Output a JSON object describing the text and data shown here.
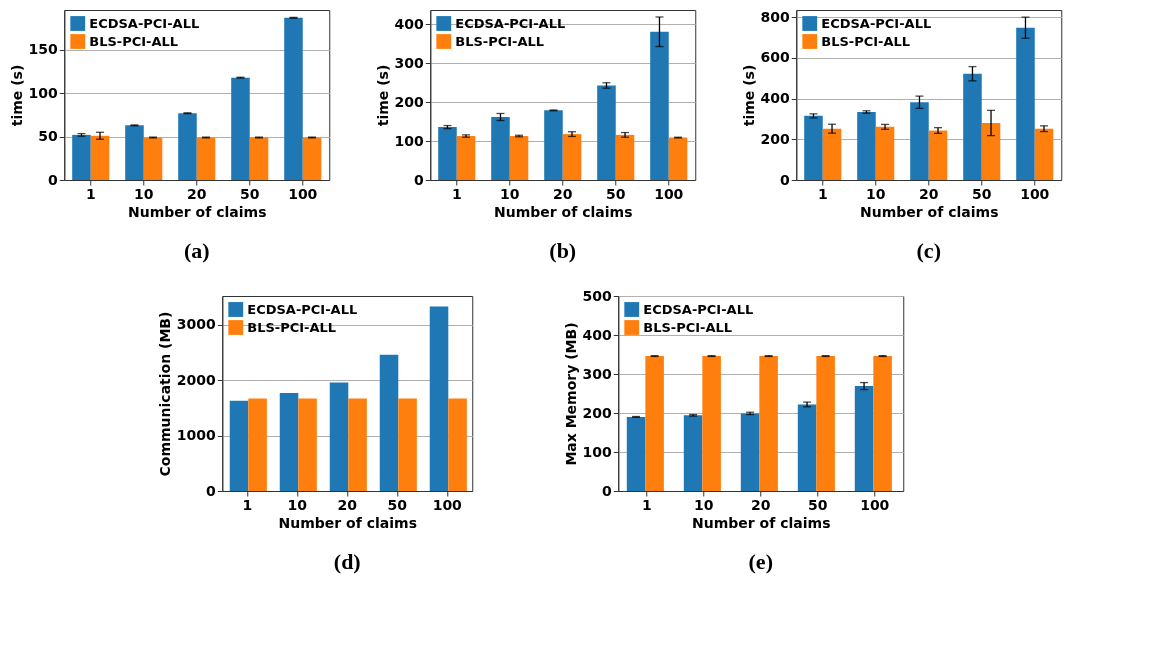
{
  "chart_data": [
    {
      "type": "bar",
      "xlabel": "Number of claims",
      "ylabel": "time (s)",
      "annotations": [
        "(a)"
      ],
      "categories": [
        "1",
        "10",
        "20",
        "50",
        "100"
      ],
      "ylim": [
        0,
        196
      ],
      "yticks": [
        0,
        50,
        100,
        150
      ],
      "grid": "y",
      "legend": "top left",
      "series": [
        {
          "name": "ECDSA-PCI-ALL",
          "color": "#1f77b4",
          "values": [
            52,
            63,
            77,
            118,
            187
          ],
          "errors": [
            1.5,
            0.5,
            0.5,
            0.5,
            0.5
          ]
        },
        {
          "name": "BLS-PCI-ALL",
          "color": "#ff7f0e",
          "values": [
            51,
            49,
            49,
            49,
            49
          ],
          "errors": [
            4,
            0.5,
            0.5,
            0.5,
            0.5
          ]
        }
      ]
    },
    {
      "type": "bar",
      "xlabel": "Number of claims",
      "ylabel": "time (s)",
      "annotations": [
        "(b)"
      ],
      "categories": [
        "1",
        "10",
        "20",
        "50",
        "100"
      ],
      "ylim": [
        0,
        437
      ],
      "yticks": [
        0,
        100,
        200,
        300,
        400
      ],
      "grid": "y",
      "legend": "top left",
      "series": [
        {
          "name": "ECDSA-PCI-ALL",
          "color": "#1f77b4",
          "values": [
            136,
            162,
            179,
            243,
            381
          ],
          "errors": [
            4,
            9,
            1,
            7,
            38
          ]
        },
        {
          "name": "BLS-PCI-ALL",
          "color": "#ff7f0e",
          "values": [
            113,
            113,
            118,
            116,
            109
          ],
          "errors": [
            3,
            2,
            6,
            6,
            1
          ]
        }
      ]
    },
    {
      "type": "bar",
      "xlabel": "Number of claims",
      "ylabel": "time (s)",
      "annotations": [
        "(c)"
      ],
      "categories": [
        "1",
        "10",
        "20",
        "50",
        "100"
      ],
      "ylim": [
        0,
        835
      ],
      "yticks": [
        0,
        200,
        400,
        600,
        800
      ],
      "grid": "y",
      "legend": "top left",
      "series": [
        {
          "name": "ECDSA-PCI-ALL",
          "color": "#1f77b4",
          "values": [
            315,
            334,
            382,
            522,
            748
          ],
          "errors": [
            10,
            6,
            30,
            35,
            52
          ]
        },
        {
          "name": "BLS-PCI-ALL",
          "color": "#ff7f0e",
          "values": [
            252,
            261,
            243,
            280,
            252
          ],
          "errors": [
            22,
            12,
            14,
            62,
            14
          ]
        }
      ]
    },
    {
      "type": "bar",
      "xlabel": "Number of claims",
      "ylabel": "Communication (MB)",
      "annotations": [
        "(d)"
      ],
      "categories": [
        "1",
        "10",
        "20",
        "50",
        "100"
      ],
      "ylim": [
        0,
        3520
      ],
      "yticks": [
        0,
        1000,
        2000,
        3000
      ],
      "grid": "y",
      "legend": "top left",
      "series": [
        {
          "name": "ECDSA-PCI-ALL",
          "color": "#1f77b4",
          "values": [
            1630,
            1770,
            1960,
            2460,
            3330
          ]
        },
        {
          "name": "BLS-PCI-ALL",
          "color": "#ff7f0e",
          "values": [
            1670,
            1670,
            1670,
            1670,
            1670
          ]
        }
      ]
    },
    {
      "type": "bar",
      "xlabel": "Number of claims",
      "ylabel": "Max Memory (MB)",
      "annotations": [
        "(e)"
      ],
      "categories": [
        "1",
        "10",
        "20",
        "50",
        "100"
      ],
      "ylim": [
        0,
        500
      ],
      "yticks": [
        0,
        100,
        200,
        300,
        400,
        500
      ],
      "grid": "y",
      "legend": "top left",
      "series": [
        {
          "name": "ECDSA-PCI-ALL",
          "color": "#1f77b4",
          "values": [
            190,
            194,
            199,
            222,
            269
          ],
          "errors": [
            1,
            2,
            3,
            6,
            9
          ]
        },
        {
          "name": "BLS-PCI-ALL",
          "color": "#ff7f0e",
          "values": [
            346,
            346,
            346,
            346,
            346
          ],
          "errors": [
            1,
            1,
            1,
            1,
            1
          ]
        }
      ]
    }
  ]
}
